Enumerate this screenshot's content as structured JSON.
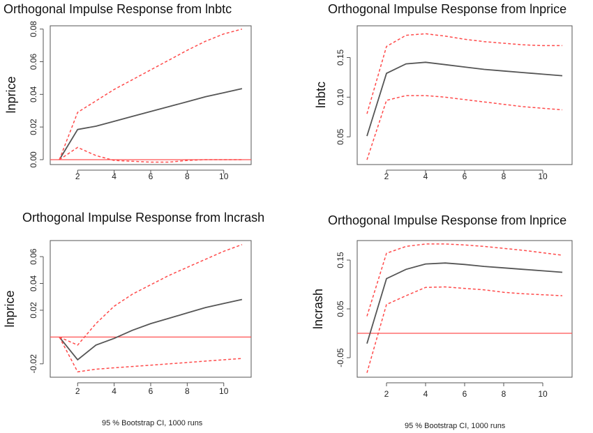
{
  "chart_data": [
    {
      "type": "line",
      "title": "Orthogonal Impulse Response from lnbtc",
      "ylabel": "lnprice",
      "xlabel": "",
      "caption": "",
      "x": [
        1,
        2,
        3,
        4,
        5,
        6,
        7,
        8,
        9,
        10,
        11
      ],
      "xlim": [
        0.5,
        11.5
      ],
      "ylim": [
        -0.003,
        0.082
      ],
      "xticks": [
        2,
        4,
        6,
        8,
        10
      ],
      "yticks": [
        0.0,
        0.02,
        0.04,
        0.06,
        0.08
      ],
      "ytick_labels": [
        "0.00",
        "0.02",
        "0.04",
        "0.06",
        "0.08"
      ],
      "zero_line": true,
      "series": [
        {
          "role": "response",
          "values": [
            0.0,
            0.0185,
            0.0205,
            0.0235,
            0.0265,
            0.0295,
            0.0325,
            0.0355,
            0.0385,
            0.041,
            0.0435
          ]
        },
        {
          "role": "upper",
          "values": [
            0.0,
            0.029,
            0.036,
            0.043,
            0.049,
            0.055,
            0.061,
            0.067,
            0.0725,
            0.077,
            0.08
          ]
        },
        {
          "role": "lower",
          "values": [
            0.0,
            0.0075,
            0.0025,
            -0.0005,
            -0.001,
            -0.0015,
            -0.0015,
            -0.0005,
            0.0,
            0.0,
            0.0
          ]
        }
      ]
    },
    {
      "type": "line",
      "title": "Orthogonal Impulse Response from lnprice",
      "ylabel": "lnbtc",
      "xlabel": "",
      "caption": "",
      "x": [
        1,
        2,
        3,
        4,
        5,
        6,
        7,
        8,
        9,
        10,
        11
      ],
      "xlim": [
        0.5,
        11.5
      ],
      "ylim": [
        0.015,
        0.19
      ],
      "xticks": [
        2,
        4,
        6,
        8,
        10
      ],
      "yticks": [
        0.05,
        0.1,
        0.15
      ],
      "ytick_labels": [
        "0.05",
        "0.10",
        "0.15"
      ],
      "zero_line": false,
      "series": [
        {
          "role": "response",
          "values": [
            0.051,
            0.13,
            0.142,
            0.144,
            0.141,
            0.138,
            0.135,
            0.133,
            0.131,
            0.129,
            0.127
          ]
        },
        {
          "role": "upper",
          "values": [
            0.079,
            0.164,
            0.178,
            0.18,
            0.177,
            0.173,
            0.17,
            0.168,
            0.166,
            0.165,
            0.165
          ]
        },
        {
          "role": "lower",
          "values": [
            0.021,
            0.096,
            0.102,
            0.102,
            0.1,
            0.097,
            0.094,
            0.091,
            0.088,
            0.086,
            0.084
          ]
        }
      ]
    },
    {
      "type": "line",
      "title": "Orthogonal Impulse Response from lncrash",
      "ylabel": "lnprice",
      "xlabel": "",
      "caption": "95 % Bootstrap CI, 1000 runs",
      "x": [
        1,
        2,
        3,
        4,
        5,
        6,
        7,
        8,
        9,
        10,
        11
      ],
      "xlim": [
        0.5,
        11.5
      ],
      "ylim": [
        -0.03,
        0.072
      ],
      "xticks": [
        2,
        4,
        6,
        8,
        10
      ],
      "yticks": [
        -0.02,
        0.02,
        0.04,
        0.06
      ],
      "ytick_labels": [
        "-0.02",
        "0.02",
        "0.04",
        "0.06"
      ],
      "zero_line": true,
      "series": [
        {
          "role": "response",
          "values": [
            0.0,
            -0.017,
            -0.006,
            -0.001,
            0.005,
            0.01,
            0.014,
            0.018,
            0.022,
            0.025,
            0.028
          ]
        },
        {
          "role": "upper",
          "values": [
            0.0,
            -0.006,
            0.01,
            0.023,
            0.032,
            0.039,
            0.046,
            0.052,
            0.058,
            0.064,
            0.069
          ]
        },
        {
          "role": "lower",
          "values": [
            0.0,
            -0.026,
            -0.024,
            -0.023,
            -0.022,
            -0.021,
            -0.02,
            -0.019,
            -0.018,
            -0.017,
            -0.016
          ]
        }
      ]
    },
    {
      "type": "line",
      "title": "Orthogonal Impulse Response from lnprice",
      "ylabel": "lncrash",
      "xlabel": "",
      "caption": "95 % Bootstrap CI, 1000 runs",
      "x": [
        1,
        2,
        3,
        4,
        5,
        6,
        7,
        8,
        9,
        10,
        11
      ],
      "xlim": [
        0.5,
        11.5
      ],
      "ylim": [
        -0.09,
        0.19
      ],
      "xticks": [
        2,
        4,
        6,
        8,
        10
      ],
      "yticks": [
        -0.05,
        0.05,
        0.15
      ],
      "ytick_labels": [
        "-0.05",
        "0.05",
        "0.15"
      ],
      "zero_line": true,
      "series": [
        {
          "role": "response",
          "values": [
            -0.021,
            0.112,
            0.131,
            0.142,
            0.144,
            0.141,
            0.137,
            0.134,
            0.131,
            0.128,
            0.125
          ]
        },
        {
          "role": "upper",
          "values": [
            0.035,
            0.164,
            0.178,
            0.183,
            0.183,
            0.181,
            0.178,
            0.174,
            0.17,
            0.165,
            0.16
          ]
        },
        {
          "role": "lower",
          "values": [
            -0.081,
            0.059,
            0.077,
            0.094,
            0.095,
            0.092,
            0.089,
            0.084,
            0.081,
            0.079,
            0.077
          ]
        }
      ]
    }
  ]
}
